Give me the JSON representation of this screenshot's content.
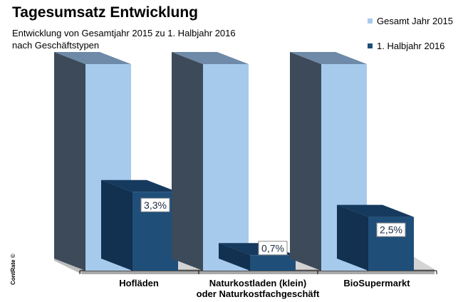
{
  "chart_data": {
    "type": "bar",
    "title": "Tagesumsatz Entwicklung",
    "subtitle_lines": [
      "Entwicklung von Gesamtjahr 2015 zu 1. Halbjahr 2016",
      "nach Geschäftstypen"
    ],
    "categories": [
      {
        "line1": "Hofläden",
        "line2": ""
      },
      {
        "line1": "Naturkostladen (klein)",
        "line2": "oder Naturkostfachgeschäft"
      },
      {
        "line1": "BioSupermarkt",
        "line2": ""
      }
    ],
    "series": [
      {
        "name": "Gesamt Jahr 2015",
        "values": [
          100,
          100,
          100
        ],
        "color": "#a6caec",
        "side_color": "#3d4a59",
        "top_color": "#6e8aa8"
      },
      {
        "name": "1. Halbjahr 2016",
        "values": [
          38,
          7.5,
          26
        ],
        "color": "#1f4e79",
        "side_color": "#12304f",
        "top_color": "#163a5e"
      }
    ],
    "value_labels": [
      "3,3%",
      "0,7%",
      "2,5%"
    ],
    "ylim": [
      0,
      100
    ],
    "legend_position": "top-right"
  },
  "copyright": "ContRate ©"
}
